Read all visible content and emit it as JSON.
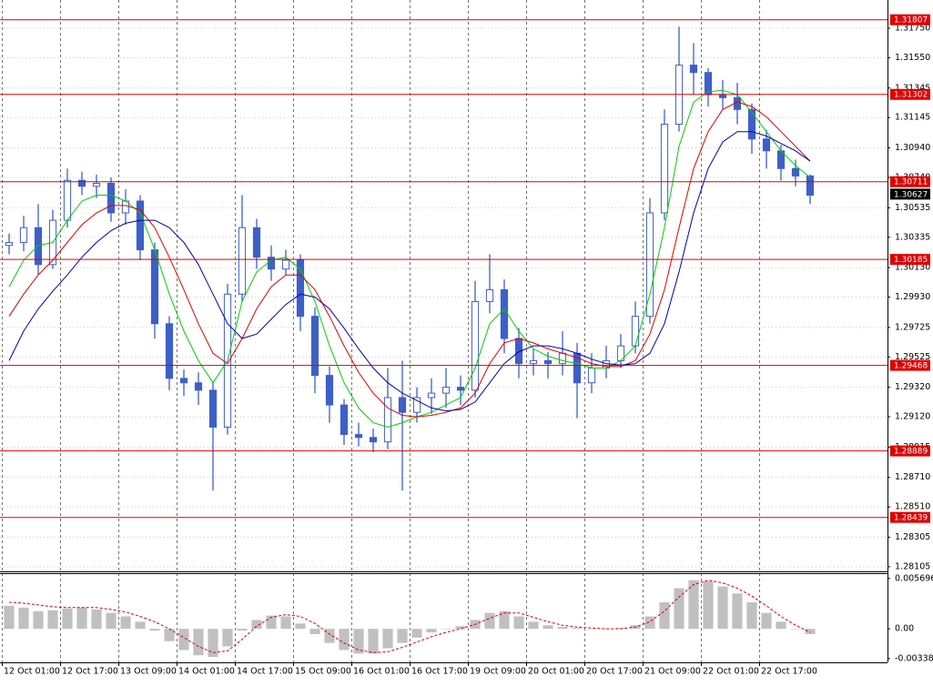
{
  "chart_data": [
    {
      "type": "candlestick",
      "x": [
        2,
        6,
        10,
        14,
        18,
        22,
        26,
        30,
        34,
        38,
        42,
        46,
        50,
        54,
        58,
        62,
        66,
        70,
        74,
        78,
        82,
        86,
        90,
        94,
        98,
        102,
        106,
        110,
        114,
        118,
        122,
        126,
        130,
        134,
        138,
        142,
        146,
        150,
        154,
        158,
        162,
        166,
        170,
        174,
        178,
        182,
        186,
        190,
        194,
        198,
        202,
        206,
        210,
        214,
        218,
        222
      ],
      "open": [
        1.3028,
        1.303,
        1.304,
        1.3015,
        1.3045,
        1.3072,
        1.3068,
        1.307,
        1.305,
        1.3058,
        1.3025,
        1.2975,
        1.2938,
        1.2935,
        1.293,
        1.2905,
        1.2995,
        1.304,
        1.302,
        1.3012,
        1.3018,
        1.298,
        1.294,
        1.292,
        1.29,
        1.2898,
        1.2895,
        1.2925,
        1.2915,
        1.2925,
        1.2928,
        1.2932,
        1.293,
        1.299,
        1.2998,
        1.2965,
        1.2948,
        1.295,
        1.2948,
        1.2955,
        1.2935,
        1.2945,
        1.295,
        1.296,
        1.298,
        1.305,
        1.311,
        1.315,
        1.3145,
        1.313,
        1.3128,
        1.312,
        1.31,
        1.3092,
        1.308,
        1.3075
      ],
      "high": [
        1.3036,
        1.3048,
        1.3056,
        1.3052,
        1.308,
        1.3078,
        1.3076,
        1.3074,
        1.3066,
        1.3062,
        1.303,
        1.298,
        1.2944,
        1.2942,
        1.2936,
        1.3002,
        1.3062,
        1.3046,
        1.3028,
        1.3025,
        1.3022,
        1.2986,
        1.2946,
        1.2924,
        1.2908,
        1.2904,
        1.2945,
        1.295,
        1.2932,
        1.2938,
        1.2945,
        1.294,
        1.3004,
        1.3022,
        1.3005,
        1.2972,
        1.2958,
        1.2956,
        1.297,
        1.2962,
        1.2955,
        1.296,
        1.2968,
        1.299,
        1.306,
        1.312,
        1.3176,
        1.3165,
        1.3148,
        1.314,
        1.3138,
        1.3124,
        1.3106,
        1.3096,
        1.3086,
        1.3076
      ],
      "low": [
        1.3022,
        1.3024,
        1.3008,
        1.3012,
        1.304,
        1.3062,
        1.306,
        1.3044,
        1.3042,
        1.3018,
        1.2965,
        1.293,
        1.2926,
        1.292,
        1.2862,
        1.29,
        1.299,
        1.3012,
        1.3004,
        1.3008,
        1.297,
        1.2928,
        1.2908,
        1.2893,
        1.2892,
        1.2888,
        1.289,
        1.2862,
        1.2908,
        1.2914,
        1.2918,
        1.292,
        1.2925,
        1.2982,
        1.2955,
        1.2938,
        1.294,
        1.2938,
        1.294,
        1.2911,
        1.2928,
        1.2938,
        1.2945,
        1.2955,
        1.2975,
        1.3045,
        1.3105,
        1.313,
        1.3122,
        1.312,
        1.311,
        1.309,
        1.308,
        1.3072,
        1.3068,
        1.3056
      ],
      "close": [
        1.303,
        1.304,
        1.3015,
        1.3045,
        1.3072,
        1.3068,
        1.307,
        1.305,
        1.3058,
        1.3025,
        1.2975,
        1.2938,
        1.2935,
        1.293,
        1.2905,
        1.2995,
        1.304,
        1.302,
        1.3012,
        1.3018,
        1.298,
        1.294,
        1.292,
        1.29,
        1.2898,
        1.2895,
        1.2925,
        1.2915,
        1.2925,
        1.2928,
        1.2932,
        1.293,
        1.299,
        1.2998,
        1.2965,
        1.2948,
        1.295,
        1.2948,
        1.2955,
        1.2935,
        1.2945,
        1.295,
        1.296,
        1.298,
        1.305,
        1.311,
        1.315,
        1.3145,
        1.313,
        1.3128,
        1.312,
        1.31,
        1.3092,
        1.308,
        1.3075,
        1.3062
      ],
      "color": "#3d5fc8",
      "series": [
        {
          "color": "#00d000",
          "values": [
            1.3,
            1.3018,
            1.3028,
            1.303,
            1.3045,
            1.3058,
            1.3062,
            1.3062,
            1.3058,
            1.305,
            1.3025,
            1.2995,
            1.297,
            1.295,
            1.2935,
            1.295,
            1.299,
            1.301,
            1.3018,
            1.302,
            1.3012,
            1.299,
            1.296,
            1.2935,
            1.2918,
            1.2908,
            1.2905,
            1.2908,
            1.2912,
            1.2915,
            1.292,
            1.2925,
            1.2945,
            1.2975,
            1.2985,
            1.297,
            1.2958,
            1.2953,
            1.295,
            1.2948,
            1.2945,
            1.2945,
            1.295,
            1.296,
            1.2995,
            1.304,
            1.3095,
            1.3125,
            1.3132,
            1.3133,
            1.313,
            1.3118,
            1.3105,
            1.3092,
            1.3082,
            1.3074
          ]
        },
        {
          "color": "#e00000",
          "values": [
            1.298,
            1.2995,
            1.3008,
            1.3018,
            1.303,
            1.3042,
            1.305,
            1.3055,
            1.3055,
            1.3052,
            1.304,
            1.302,
            1.2998,
            1.2975,
            1.2955,
            1.2948,
            1.2965,
            1.2985,
            1.3,
            1.3008,
            1.3008,
            1.2998,
            1.298,
            1.296,
            1.2942,
            1.2928,
            1.2918,
            1.2913,
            1.2912,
            1.2913,
            1.2915,
            1.2918,
            1.2928,
            1.2948,
            1.2962,
            1.2965,
            1.2962,
            1.2958,
            1.2955,
            1.2952,
            1.2948,
            1.2946,
            1.2946,
            1.295,
            1.2968,
            1.2998,
            1.304,
            1.308,
            1.3105,
            1.312,
            1.3125,
            1.3122,
            1.3115,
            1.3105,
            1.3095,
            1.3085
          ]
        },
        {
          "color": "#0000b0",
          "values": [
            1.295,
            1.297,
            1.2985,
            1.2997,
            1.3008,
            1.302,
            1.303,
            1.3038,
            1.3043,
            1.3045,
            1.3045,
            1.304,
            1.303,
            1.3015,
            1.2995,
            1.2975,
            1.2965,
            1.2968,
            1.2978,
            1.2988,
            1.2995,
            1.2993,
            1.2985,
            1.2972,
            1.2958,
            1.2945,
            1.2935,
            1.2928,
            1.2923,
            1.2918,
            1.2916,
            1.2917,
            1.2922,
            1.2935,
            1.2948,
            1.2956,
            1.296,
            1.296,
            1.2958,
            1.2955,
            1.2951,
            1.2948,
            1.2947,
            1.2948,
            1.2955,
            1.2975,
            1.301,
            1.305,
            1.308,
            1.3098,
            1.3105,
            1.3105,
            1.3102,
            1.3097,
            1.3092,
            1.3085
          ]
        }
      ],
      "levels": [
        1.31807,
        1.31302,
        1.30711,
        1.30185,
        1.29468,
        1.28889,
        1.28439
      ],
      "level_color": "#e00000",
      "current_price": 1.30627,
      "xlim": [
        -0.5,
        243.25
      ],
      "ylim": [
        1.2808,
        1.3191
      ],
      "xticks": [
        {
          "value": 0,
          "label": "12 Oct 01:00"
        },
        {
          "value": 16,
          "label": "12 Oct 17:00"
        },
        {
          "value": 32,
          "label": "13 Oct 09:00"
        },
        {
          "value": 48,
          "label": "14 Oct 01:00"
        },
        {
          "value": 64,
          "label": "14 Oct 17:00"
        },
        {
          "value": 80,
          "label": "15 Oct 09:00"
        },
        {
          "value": 96,
          "label": "16 Oct 01:00"
        },
        {
          "value": 112,
          "label": "16 Oct 17:00"
        },
        {
          "value": 128,
          "label": "19 Oct 09:00"
        },
        {
          "value": 144,
          "label": "20 Oct 01:00"
        },
        {
          "value": 160,
          "label": "20 Oct 17:00"
        },
        {
          "value": 176,
          "label": "21 Oct 09:00"
        },
        {
          "value": 192,
          "label": "22 Oct 01:00"
        },
        {
          "value": 208,
          "label": "22 Oct 17:00"
        }
      ],
      "yticks": [
        {
          "value": 1.3175,
          "label": "1.31750"
        },
        {
          "value": 1.3155,
          "label": "1.31550"
        },
        1.31345,
        1.31145,
        {
          "value": 1.3094,
          "label": "1.30940"
        },
        {
          "value": 1.3074,
          "label": "1.30740"
        },
        1.30535,
        1.30335,
        {
          "value": 1.3013,
          "label": "1.30130"
        },
        {
          "value": 1.2993,
          "label": "1.29930"
        },
        1.29725,
        1.29525,
        {
          "value": 1.2932,
          "label": "1.29320"
        },
        {
          "value": 1.2912,
          "label": "1.29120"
        },
        1.28915,
        {
          "value": 1.2871,
          "label": "1.28710"
        },
        {
          "value": 1.2851,
          "label": "1.28510"
        },
        1.28305,
        1.28105
      ],
      "grid": true
    },
    {
      "type": "bar",
      "series": [
        {
          "type": "bar",
          "color": "#c0c0c0",
          "values": [
            0.0026,
            0.0024,
            0.002,
            0.0021,
            0.0023,
            0.0024,
            0.0022,
            0.0018,
            0.0014,
            0.0008,
            -0.0002,
            -0.0014,
            -0.0024,
            -0.003,
            -0.0032,
            -0.002,
            -0.0002,
            0.001,
            0.0015,
            0.0014,
            0.0006,
            -0.0006,
            -0.0016,
            -0.0024,
            -0.0028,
            -0.0028,
            -0.0022,
            -0.0016,
            -0.001,
            -0.0004,
            0.0,
            0.0003,
            0.001,
            0.0018,
            0.002,
            0.0014,
            0.0008,
            0.0004,
            0.0002,
            0.0001,
            0.0,
            0.0,
            0.0001,
            0.0004,
            0.0014,
            0.003,
            0.0046,
            0.0055,
            0.0054,
            0.0048,
            0.004,
            0.003,
            0.0018,
            0.0008,
            0.0,
            -0.0006
          ]
        },
        {
          "type": "line",
          "color": "#e00000",
          "values": [
            0.003,
            0.0029,
            0.0027,
            0.0025,
            0.0024,
            0.0024,
            0.0024,
            0.0022,
            0.0019,
            0.0014,
            0.0008,
            0.0,
            -0.001,
            -0.002,
            -0.0027,
            -0.0025,
            -0.0012,
            0.0003,
            0.0013,
            0.0016,
            0.0014,
            0.0006,
            -0.0006,
            -0.0016,
            -0.0024,
            -0.0027,
            -0.0026,
            -0.0021,
            -0.0015,
            -0.0009,
            -0.0004,
            0.0,
            0.0005,
            0.0012,
            0.0018,
            0.0018,
            0.0013,
            0.0008,
            0.0004,
            0.0002,
            0.0001,
            0.0,
            0.0,
            0.0002,
            0.0008,
            0.002,
            0.0036,
            0.005,
            0.0055,
            0.0052,
            0.0046,
            0.0037,
            0.0026,
            0.0014,
            0.0004,
            -0.0004
          ]
        }
      ],
      "ylim": [
        -0.0038,
        0.0063
      ],
      "yticks": [
        0.005696,
        {
          "value": 0,
          "label": "0.00"
        },
        -0.00338
      ]
    }
  ]
}
